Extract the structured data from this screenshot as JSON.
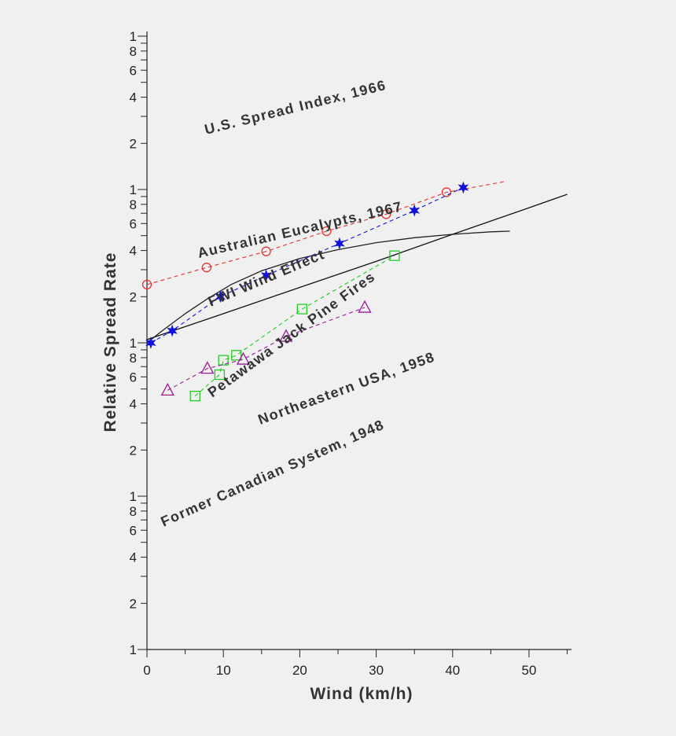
{
  "chart_data": {
    "type": "line",
    "xlabel": "Wind (km/h)",
    "ylabel": "Relative Spread Rate",
    "x_ticks": [
      "0",
      "10",
      "20",
      "30",
      "40",
      "50"
    ],
    "x_range": [
      0,
      55
    ],
    "y_scale": "log",
    "y_decades": 4,
    "y_tick_labels": [
      "1",
      "2",
      "4",
      "6",
      "8"
    ],
    "series": [
      {
        "name": "U.S. Spread Index, 1966",
        "color": "#222222",
        "style": "solid",
        "marker": "none",
        "points": [
          [
            0,
            1.0
          ],
          [
            2,
            1.2
          ],
          [
            5,
            1.55
          ],
          [
            8,
            1.95
          ],
          [
            11,
            2.4
          ],
          [
            15,
            2.95
          ],
          [
            20,
            3.55
          ],
          [
            25,
            4.05
          ],
          [
            30,
            4.5
          ],
          [
            35,
            4.85
          ],
          [
            40,
            5.1
          ],
          [
            45,
            5.3
          ],
          [
            47.5,
            5.35
          ]
        ]
      },
      {
        "name": "FWI Wind Effect",
        "color": "#111111",
        "style": "solid",
        "marker": "none",
        "points": [
          [
            0,
            1.05
          ],
          [
            10,
            1.55
          ],
          [
            20,
            2.3
          ],
          [
            30,
            3.4
          ],
          [
            40,
            5.1
          ],
          [
            50,
            7.6
          ],
          [
            55,
            9.3
          ]
        ]
      },
      {
        "name": "Australian Eucalypts, 1967",
        "color": "#e83030",
        "style": "dashed",
        "marker": "circle",
        "points": [
          [
            0,
            2.4
          ],
          [
            7.8,
            3.1
          ],
          [
            15.6,
            3.95
          ],
          [
            23.5,
            5.35
          ],
          [
            31.3,
            6.9
          ],
          [
            39.2,
            9.6
          ]
        ],
        "line_end": [
          47,
          11.3
        ]
      },
      {
        "name": "Petawawa Jack Pine Fires",
        "color": "#22cc22",
        "style": "dashed",
        "marker": "square",
        "points": [
          [
            6.3,
            0.45
          ],
          [
            9.5,
            0.62
          ],
          [
            10,
            0.77
          ],
          [
            11.7,
            0.83
          ],
          [
            20.3,
            1.66
          ],
          [
            32.4,
            3.7
          ]
        ]
      },
      {
        "name": "Northeastern USA, 1958",
        "color": "#1111dd",
        "style": "dashed",
        "marker": "star",
        "points": [
          [
            0.5,
            1.0
          ],
          [
            3.3,
            1.2
          ],
          [
            9.6,
            2.0
          ],
          [
            15.6,
            2.75
          ],
          [
            25.2,
            4.45
          ],
          [
            35,
            7.3
          ],
          [
            41.4,
            10.3
          ]
        ]
      },
      {
        "name": "Former Canadian System, 1948",
        "color": "#9a1a9a",
        "style": "dashed",
        "marker": "triangle",
        "points": [
          [
            2.7,
            0.49
          ],
          [
            7.9,
            0.68
          ],
          [
            12.6,
            0.78
          ],
          [
            18.2,
            1.1
          ],
          [
            28.5,
            1.7
          ]
        ]
      }
    ]
  }
}
